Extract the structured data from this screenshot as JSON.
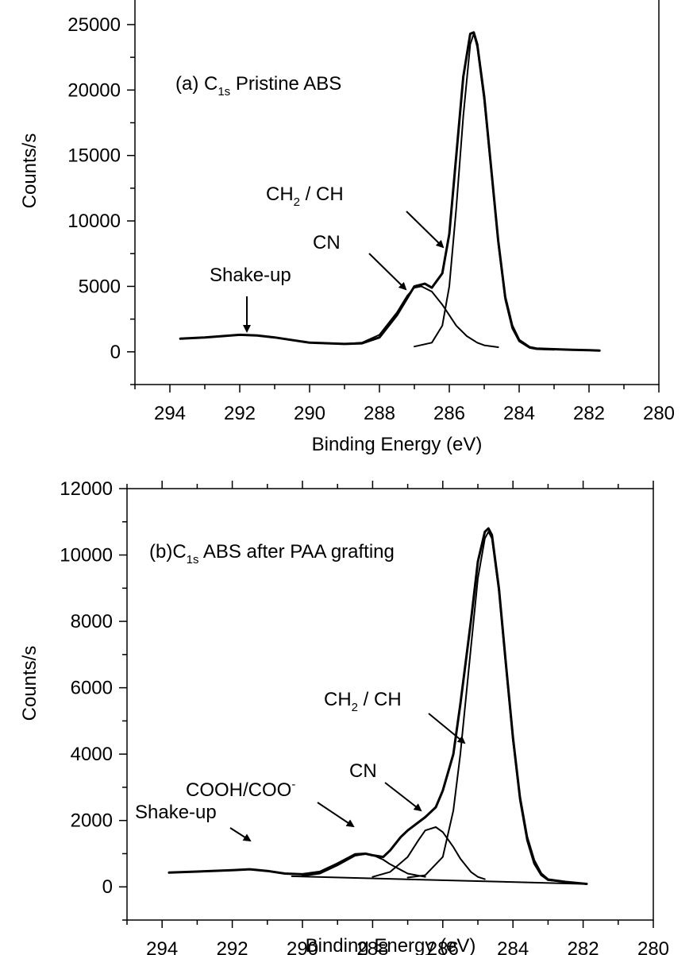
{
  "chart_data": [
    {
      "panel": "a",
      "type": "line",
      "title_prefix": "(a) C",
      "title_sub": "1s",
      "title_suffix": " Pristine ABS",
      "xlabel": "Binding Energy (eV)",
      "ylabel": "Counts/s",
      "xlim": [
        295,
        280
      ],
      "ylim": [
        -2500,
        27000
      ],
      "xticks": [
        294,
        292,
        290,
        288,
        286,
        284,
        282,
        280
      ],
      "yticks": [
        0,
        5000,
        10000,
        15000,
        20000,
        25000
      ],
      "series": [
        {
          "role": "envelope",
          "x": [
            293.7,
            293.0,
            292.0,
            291.5,
            291.0,
            290.0,
            289.0,
            288.5,
            288.0,
            287.5,
            287.0,
            286.7,
            286.5,
            286.2,
            286.0,
            285.8,
            285.6,
            285.4,
            285.3,
            285.2,
            285.0,
            284.8,
            284.6,
            284.4,
            284.2,
            284.0,
            283.7,
            283.5,
            283.0,
            282.5,
            282.0,
            281.7
          ],
          "y": [
            1000,
            1100,
            1300,
            1250,
            1100,
            700,
            600,
            650,
            1100,
            2800,
            5000,
            5200,
            4900,
            6000,
            9000,
            15000,
            21000,
            24300,
            24400,
            23500,
            19500,
            14000,
            8500,
            4200,
            2000,
            900,
            350,
            250,
            200,
            150,
            120,
            100
          ]
        },
        {
          "role": "component-CN",
          "x": [
            289.0,
            288.5,
            288.0,
            287.5,
            287.2,
            287.0,
            286.8,
            286.5,
            286.2,
            286.0,
            285.8,
            285.5,
            285.2,
            285.0,
            284.6
          ],
          "y": [
            600,
            700,
            1300,
            3000,
            4300,
            4900,
            5000,
            4600,
            3600,
            2800,
            2000,
            1200,
            700,
            500,
            350
          ]
        },
        {
          "role": "component-CH2/CH",
          "x": [
            287.0,
            286.5,
            286.2,
            286.0,
            285.8,
            285.6,
            285.4,
            285.3,
            285.2,
            285.0,
            284.8,
            284.6,
            284.4,
            284.2,
            284.0,
            283.7,
            283.5,
            283.0
          ],
          "y": [
            400,
            700,
            2000,
            5000,
            11000,
            18000,
            23500,
            24300,
            23300,
            19200,
            13800,
            8300,
            4000,
            1800,
            800,
            300,
            200,
            150
          ]
        }
      ],
      "annotations": [
        {
          "text": "Shake-up"
        },
        {
          "text": "CN"
        },
        {
          "text_main": "CH",
          "text_sub": "2",
          "text_after": " / CH"
        }
      ]
    },
    {
      "panel": "b",
      "type": "line",
      "title_prefix": "(b)C",
      "title_sub": "1s",
      "title_suffix": " ABS after PAA grafting",
      "xlabel": "Binding Energy (eV)",
      "ylabel": "Counts/s",
      "xlim": [
        295,
        280
      ],
      "ylim": [
        -1000,
        12000
      ],
      "xticks": [
        294,
        292,
        290,
        288,
        286,
        284,
        282,
        280
      ],
      "yticks": [
        0,
        2000,
        4000,
        6000,
        8000,
        10000,
        12000
      ],
      "series": [
        {
          "role": "envelope",
          "x": [
            293.8,
            293.0,
            292.0,
            291.5,
            291.0,
            290.5,
            290.0,
            289.5,
            289.0,
            288.5,
            288.2,
            288.0,
            287.7,
            287.5,
            287.2,
            287.0,
            286.5,
            286.2,
            286.0,
            285.7,
            285.5,
            285.2,
            285.0,
            284.8,
            284.7,
            284.6,
            284.4,
            284.2,
            284.0,
            283.8,
            283.6,
            283.4,
            283.2,
            283.0,
            282.5,
            282.0,
            281.9
          ],
          "y": [
            430,
            460,
            500,
            530,
            480,
            400,
            380,
            450,
            700,
            980,
            1000,
            950,
            900,
            1100,
            1500,
            1700,
            2100,
            2400,
            2900,
            4000,
            5500,
            8000,
            9800,
            10700,
            10800,
            10600,
            9000,
            6700,
            4500,
            2700,
            1500,
            800,
            400,
            220,
            150,
            100,
            90
          ]
        },
        {
          "role": "component-COOH/COO-",
          "x": [
            290.0,
            289.5,
            289.0,
            288.5,
            288.2,
            288.0,
            287.7,
            287.5,
            287.0,
            286.5
          ],
          "y": [
            330,
            400,
            650,
            940,
            990,
            960,
            820,
            680,
            400,
            300
          ]
        },
        {
          "role": "component-CN",
          "x": [
            288.0,
            287.5,
            287.0,
            286.7,
            286.5,
            286.2,
            286.0,
            285.7,
            285.5,
            285.2,
            285.0,
            284.8
          ],
          "y": [
            300,
            450,
            900,
            1400,
            1700,
            1800,
            1650,
            1200,
            850,
            450,
            300,
            230
          ]
        },
        {
          "role": "component-CH2/CH",
          "x": [
            287.0,
            286.5,
            286.0,
            285.7,
            285.5,
            285.2,
            285.0,
            284.8,
            284.7,
            284.6,
            284.4,
            284.2,
            284.0,
            283.8,
            283.6,
            283.4,
            283.2,
            283.0,
            282.5
          ],
          "y": [
            280,
            350,
            900,
            2300,
            4000,
            7200,
            9300,
            10500,
            10700,
            10500,
            8900,
            6600,
            4400,
            2600,
            1400,
            700,
            350,
            200,
            150
          ]
        },
        {
          "role": "baseline",
          "x": [
            290.3,
            282.0
          ],
          "y": [
            320,
            90
          ]
        }
      ],
      "annotations": [
        {
          "text": "Shake-up"
        },
        {
          "text_main": "COOH/COO",
          "text_sup": "-"
        },
        {
          "text": "CN"
        },
        {
          "text_main": "CH",
          "text_sub": "2",
          "text_after": " / CH"
        }
      ]
    }
  ]
}
